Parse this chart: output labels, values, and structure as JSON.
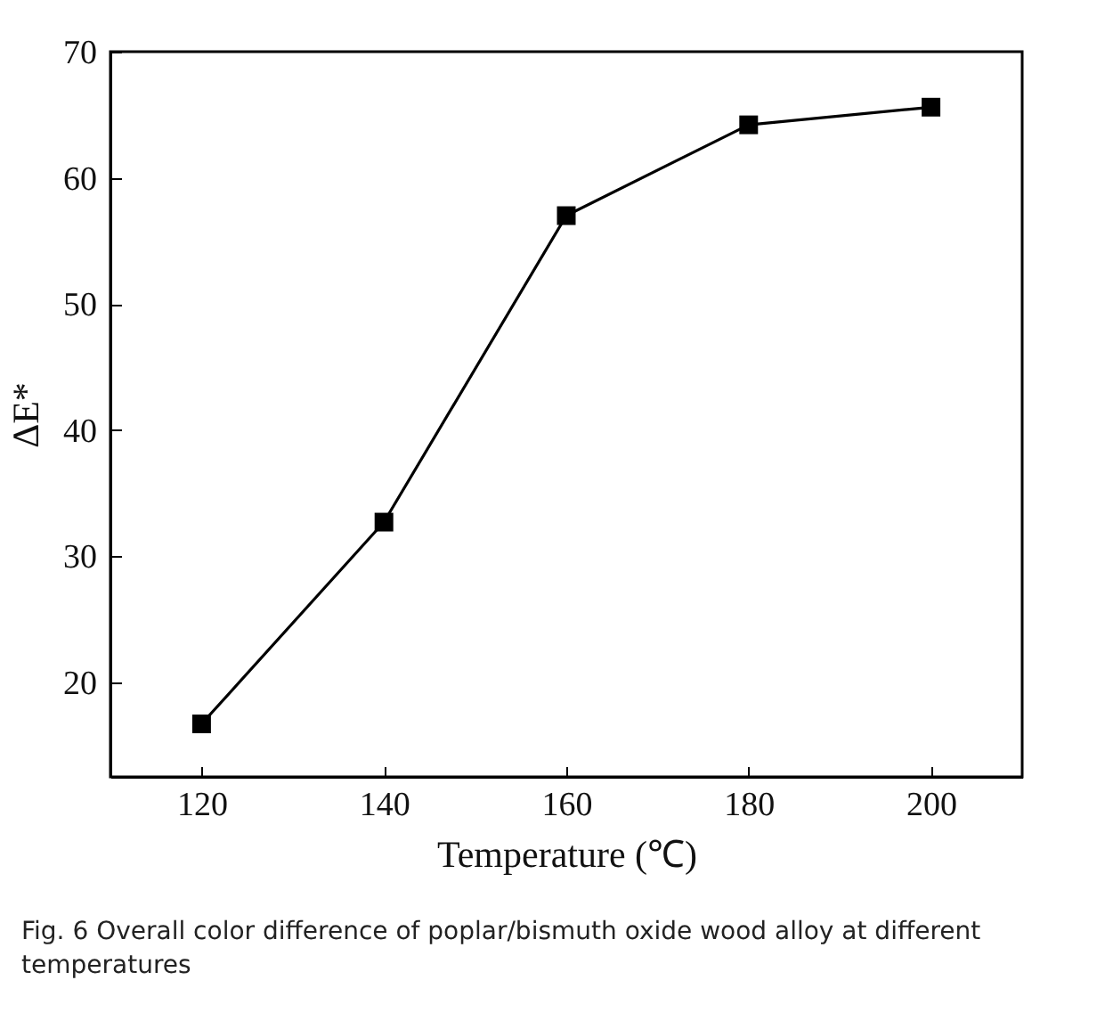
{
  "chart_data": {
    "type": "line",
    "xlabel": "Temperature (℃)",
    "ylabel": "ΔE*",
    "x": [
      120,
      140,
      160,
      180,
      200
    ],
    "series": [
      {
        "color": "#000000",
        "values": [
          16.7,
          32.7,
          57.0,
          64.2,
          65.6
        ]
      }
    ],
    "xlim": [
      110,
      210
    ],
    "xticks": [
      120,
      140,
      160,
      180,
      200
    ],
    "ylim": [
      12.5,
      70
    ],
    "yticks": [
      20,
      30,
      40,
      50,
      60,
      70
    ],
    "marker": "square",
    "line_style": "solid",
    "grid": false,
    "legend": false,
    "annotations": [
      "Fig. 6  Overall color difference of poplar/bismuth oxide wood alloy at different temperatures"
    ]
  }
}
